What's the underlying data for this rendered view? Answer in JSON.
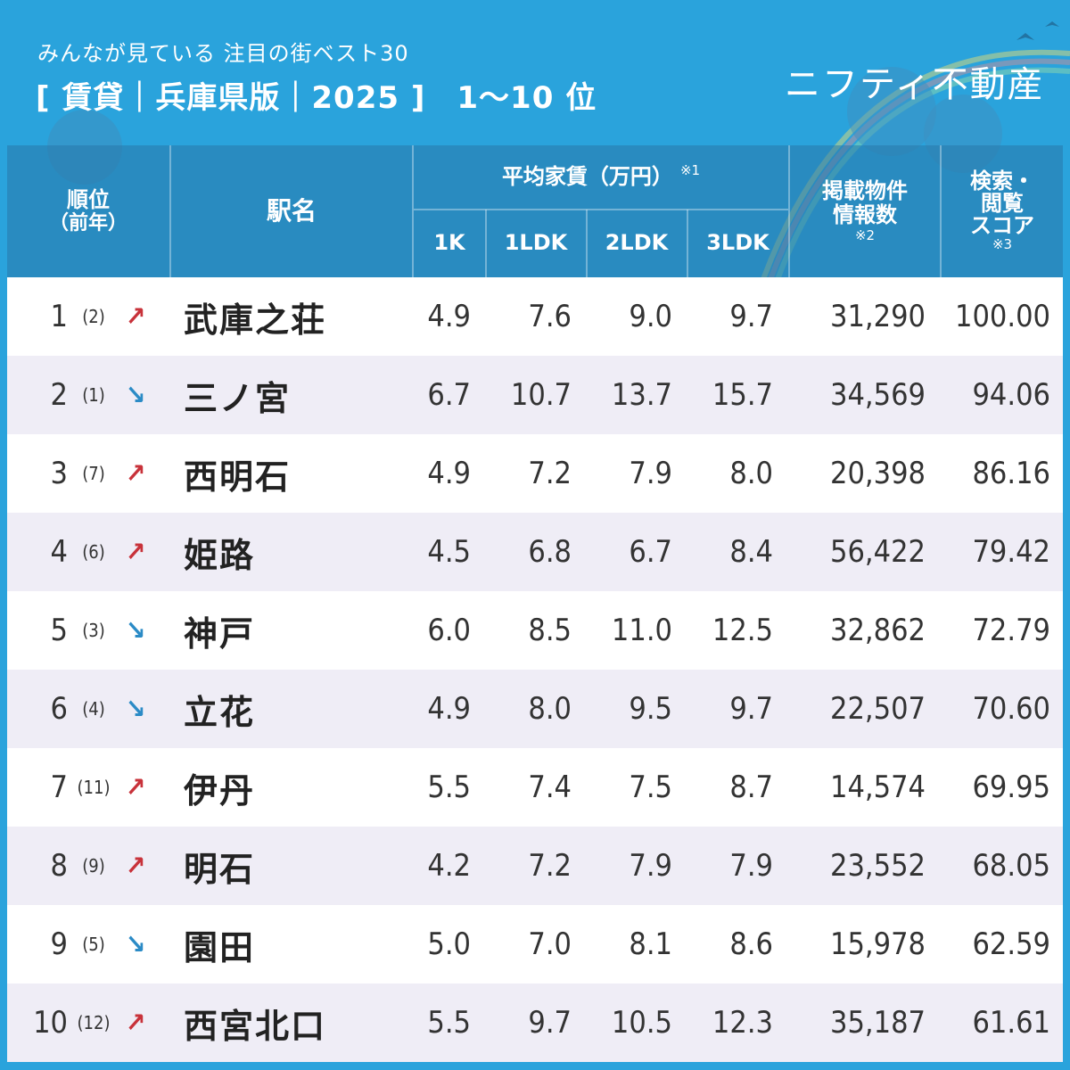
{
  "header": {
    "subtitle": "みんなが見ている 注目の街ベスト30",
    "title": "[ 賃貸｜兵庫県版｜2025 ]　1〜10 位",
    "brand": "ニフティ不動産"
  },
  "table": {
    "headers": {
      "rank": "順位",
      "rank_sub": "（前年）",
      "station": "駅名",
      "rent_group": "平均家賃（万円）",
      "rent_note": "※1",
      "rent_cols": [
        "1K",
        "1LDK",
        "2LDK",
        "3LDK"
      ],
      "listings": "掲載物件\n情報数",
      "listings_note": "※2",
      "score": "検索・\n閲覧\nスコア",
      "score_note": "※3"
    },
    "rows": [
      {
        "rank": "1",
        "prev": "(2)",
        "trend": "up",
        "trend_icon": "↗",
        "station": "武庫之荘",
        "k1": "4.9",
        "ldk1": "7.6",
        "ldk2": "9.0",
        "ldk3": "9.7",
        "listings": "31,290",
        "score": "100.00"
      },
      {
        "rank": "2",
        "prev": "(1)",
        "trend": "down",
        "trend_icon": "↘",
        "station": "三ノ宮",
        "k1": "6.7",
        "ldk1": "10.7",
        "ldk2": "13.7",
        "ldk3": "15.7",
        "listings": "34,569",
        "score": "94.06"
      },
      {
        "rank": "3",
        "prev": "(7)",
        "trend": "up",
        "trend_icon": "↗",
        "station": "西明石",
        "k1": "4.9",
        "ldk1": "7.2",
        "ldk2": "7.9",
        "ldk3": "8.0",
        "listings": "20,398",
        "score": "86.16"
      },
      {
        "rank": "4",
        "prev": "(6)",
        "trend": "up",
        "trend_icon": "↗",
        "station": "姫路",
        "k1": "4.5",
        "ldk1": "6.8",
        "ldk2": "6.7",
        "ldk3": "8.4",
        "listings": "56,422",
        "score": "79.42"
      },
      {
        "rank": "5",
        "prev": "(3)",
        "trend": "down",
        "trend_icon": "↘",
        "station": "神戸",
        "k1": "6.0",
        "ldk1": "8.5",
        "ldk2": "11.0",
        "ldk3": "12.5",
        "listings": "32,862",
        "score": "72.79"
      },
      {
        "rank": "6",
        "prev": "(4)",
        "trend": "down",
        "trend_icon": "↘",
        "station": "立花",
        "k1": "4.9",
        "ldk1": "8.0",
        "ldk2": "9.5",
        "ldk3": "9.7",
        "listings": "22,507",
        "score": "70.60"
      },
      {
        "rank": "7",
        "prev": "(11)",
        "trend": "up",
        "trend_icon": "↗",
        "station": "伊丹",
        "k1": "5.5",
        "ldk1": "7.4",
        "ldk2": "7.5",
        "ldk3": "8.7",
        "listings": "14,574",
        "score": "69.95"
      },
      {
        "rank": "8",
        "prev": "(9)",
        "trend": "up",
        "trend_icon": "↗",
        "station": "明石",
        "k1": "4.2",
        "ldk1": "7.2",
        "ldk2": "7.9",
        "ldk3": "7.9",
        "listings": "23,552",
        "score": "68.05"
      },
      {
        "rank": "9",
        "prev": "(5)",
        "trend": "down",
        "trend_icon": "↘",
        "station": "園田",
        "k1": "5.0",
        "ldk1": "7.0",
        "ldk2": "8.1",
        "ldk3": "8.6",
        "listings": "15,978",
        "score": "62.59"
      },
      {
        "rank": "10",
        "prev": "(12)",
        "trend": "up",
        "trend_icon": "↗",
        "station": "西宮北口",
        "k1": "5.5",
        "ldk1": "9.7",
        "ldk2": "10.5",
        "ldk3": "12.3",
        "listings": "35,187",
        "score": "61.61"
      }
    ]
  },
  "colors": {
    "background": "#2aa3dc",
    "row_alt": "#efedf6",
    "trend_up": "#c8323a",
    "trend_down": "#2b8bc6"
  }
}
